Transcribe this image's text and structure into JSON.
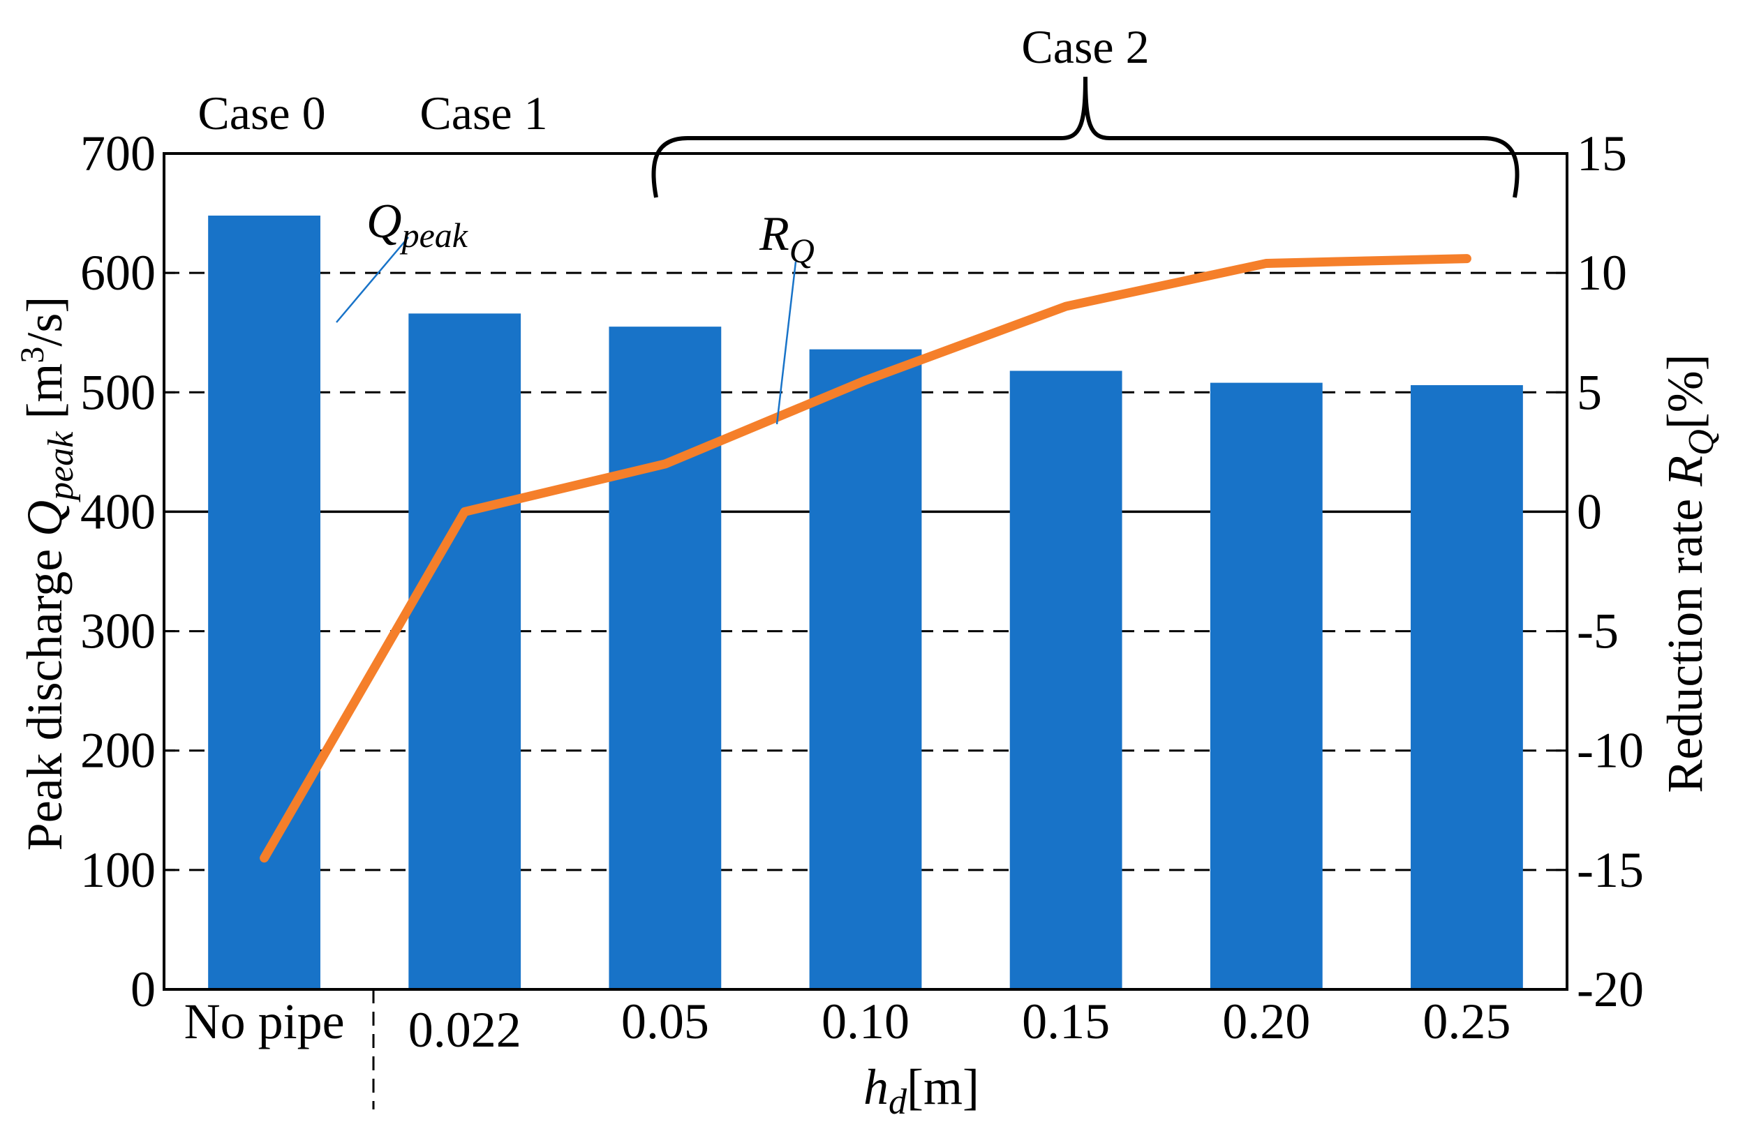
{
  "chart_data": {
    "type": "bar+line",
    "xlabel": "h_d[m]",
    "xlabel_parts": {
      "main": "h",
      "sub": "d",
      "unit": "[m]"
    },
    "categories": [
      "No pipe",
      "0.022",
      "0.05",
      "0.10",
      "0.15",
      "0.20",
      "0.25"
    ],
    "bar_series": {
      "name": "Q_peak",
      "annotation": {
        "main": "Q",
        "sub": "peak"
      },
      "color": "#1873c8",
      "values": [
        648,
        566,
        555,
        536,
        518,
        508,
        506
      ]
    },
    "line_series": {
      "name": "R_Q",
      "annotation": {
        "main": "R",
        "sub": "Q"
      },
      "color": "#f57f2a",
      "values": [
        -14.5,
        0.0,
        2.0,
        5.5,
        8.6,
        10.4,
        10.6
      ]
    },
    "y_left": {
      "label_parts": {
        "pre": "Peak discharge ",
        "main": "Q",
        "sub": "peak",
        "unit_pre": " [m",
        "sup": "3",
        "unit_post": "/s]"
      },
      "ylim": [
        0,
        700
      ],
      "ticks": [
        0,
        100,
        200,
        300,
        400,
        500,
        600,
        700
      ],
      "tick_labels": [
        "0",
        "100",
        "200",
        "300",
        "400",
        "500",
        "600",
        "700"
      ]
    },
    "y_right": {
      "label_parts": {
        "pre": "Reduction rate ",
        "main": "R",
        "sub": "Q",
        "unit": "[%]"
      },
      "ylim": [
        -20,
        15
      ],
      "ticks": [
        -20,
        -15,
        -10,
        -5,
        0,
        5,
        10,
        15
      ],
      "tick_labels": [
        "-20",
        "-15",
        "-10",
        "-5",
        "0",
        "5",
        "10",
        "15"
      ]
    },
    "gridlines": "dashed at 100, 200, 300, 500, 600; solid at 400 (R_Q = 0)",
    "case_labels": {
      "case0": "Case 0",
      "case1": "Case 1",
      "case2": "Case 2"
    }
  }
}
